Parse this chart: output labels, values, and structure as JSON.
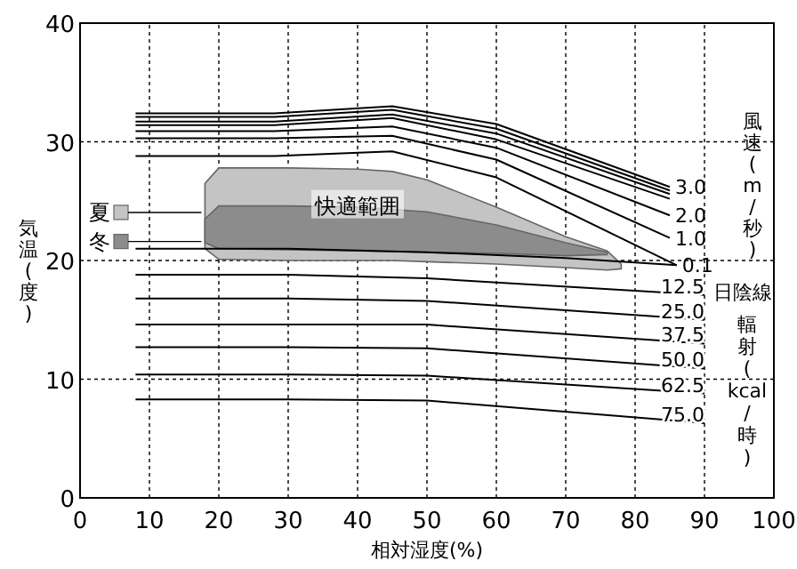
{
  "chart_data": {
    "type": "line",
    "xlabel": "相対湿度(%)",
    "ylabel": "気温(度)",
    "xlim": [
      0,
      100
    ],
    "xticks": [
      0,
      10,
      20,
      30,
      40,
      50,
      60,
      70,
      80,
      90,
      100
    ],
    "ylim": [
      0,
      40
    ],
    "yticks": [
      0,
      10,
      20,
      30,
      40
    ],
    "grid": true,
    "line_style": "solid",
    "legend": "left",
    "series": [
      {
        "name": "夏",
        "color": "#c4c4c4",
        "x": [
          18,
          20,
          30,
          40,
          45,
          50,
          60,
          70,
          76,
          78
        ],
        "values": [
          null,
          null,
          null,
          null,
          null,
          null,
          null,
          null,
          null,
          null
        ],
        "upper": [
          26.5,
          27.8,
          27.8,
          27.7,
          27.5,
          26.8,
          24.5,
          22.0,
          20.8,
          19.7
        ],
        "lower": [
          21.0,
          20.1,
          20.0,
          20.0,
          20.0,
          19.9,
          19.7,
          19.4,
          19.2,
          19.3
        ]
      },
      {
        "name": "冬",
        "color": "#8c8c8c",
        "x": [
          18,
          20,
          30,
          40,
          50,
          60,
          70,
          76
        ],
        "values": [
          null,
          null,
          null,
          null,
          null,
          null,
          null,
          null
        ],
        "upper": [
          23.5,
          24.6,
          24.6,
          24.5,
          24.1,
          23.0,
          21.5,
          20.7
        ],
        "lower": [
          21.5,
          21.0,
          20.9,
          20.8,
          20.7,
          20.6,
          20.4,
          20.5
        ]
      },
      {
        "name": "3.0",
        "color": "#000000",
        "x": [
          8,
          28,
          45,
          60,
          85
        ],
        "values": [
          32.4,
          32.4,
          33.0,
          31.5,
          26.2
        ]
      },
      {
        "color": "#000000",
        "x": [
          8,
          28,
          45,
          60,
          85
        ],
        "values": [
          32.1,
          32.1,
          32.7,
          31.1,
          25.9
        ]
      },
      {
        "color": "#000000",
        "x": [
          8,
          28,
          45,
          60,
          85
        ],
        "values": [
          31.7,
          31.7,
          32.3,
          30.7,
          25.6
        ]
      },
      {
        "color": "#000000",
        "x": [
          8,
          28,
          45,
          60,
          85
        ],
        "values": [
          31.4,
          31.4,
          32.0,
          30.2,
          25.2
        ]
      },
      {
        "name": "2.0",
        "color": "#000000",
        "x": [
          8,
          28,
          45,
          60,
          85
        ],
        "values": [
          30.9,
          30.9,
          31.3,
          29.5,
          23.8
        ]
      },
      {
        "name": "1.0",
        "color": "#000000",
        "x": [
          8,
          28,
          45,
          60,
          85
        ],
        "values": [
          30.3,
          30.3,
          30.5,
          28.5,
          21.9
        ]
      },
      {
        "name": "0.1",
        "color": "#000000",
        "x": [
          8,
          28,
          45,
          60,
          86
        ],
        "values": [
          28.8,
          28.8,
          29.2,
          27.0,
          19.6
        ]
      },
      {
        "color": "#000000",
        "x": [
          8,
          30,
          50,
          70,
          86
        ],
        "values": [
          21.0,
          21.0,
          20.7,
          20.2,
          19.6
        ]
      },
      {
        "name": "12.5",
        "color": "#000000",
        "x": [
          8,
          30,
          50,
          90
        ],
        "values": [
          18.8,
          18.8,
          18.5,
          17.1
        ]
      },
      {
        "name": "25.0",
        "color": "#000000",
        "x": [
          8,
          30,
          50,
          90
        ],
        "values": [
          16.8,
          16.8,
          16.6,
          15.0
        ]
      },
      {
        "name": "37.5",
        "color": "#000000",
        "x": [
          8,
          30,
          50,
          90
        ],
        "values": [
          14.6,
          14.6,
          14.6,
          13.0
        ]
      },
      {
        "name": "50.0",
        "color": "#000000",
        "x": [
          8,
          30,
          50,
          90
        ],
        "values": [
          12.7,
          12.7,
          12.6,
          10.9
        ]
      },
      {
        "name": "62.5",
        "color": "#000000",
        "x": [
          8,
          30,
          50,
          90
        ],
        "values": [
          10.4,
          10.4,
          10.3,
          8.8
        ]
      },
      {
        "name": "75.0",
        "color": "#000000",
        "x": [
          8,
          30,
          50,
          90
        ],
        "values": [
          8.3,
          8.3,
          8.2,
          6.3
        ]
      }
    ],
    "annotations": [
      {
        "text": "快適範囲",
        "x": 40,
        "y": 24.6
      },
      "風速(m/秒)",
      "日陰線",
      "輻射(kcal/時)"
    ]
  }
}
